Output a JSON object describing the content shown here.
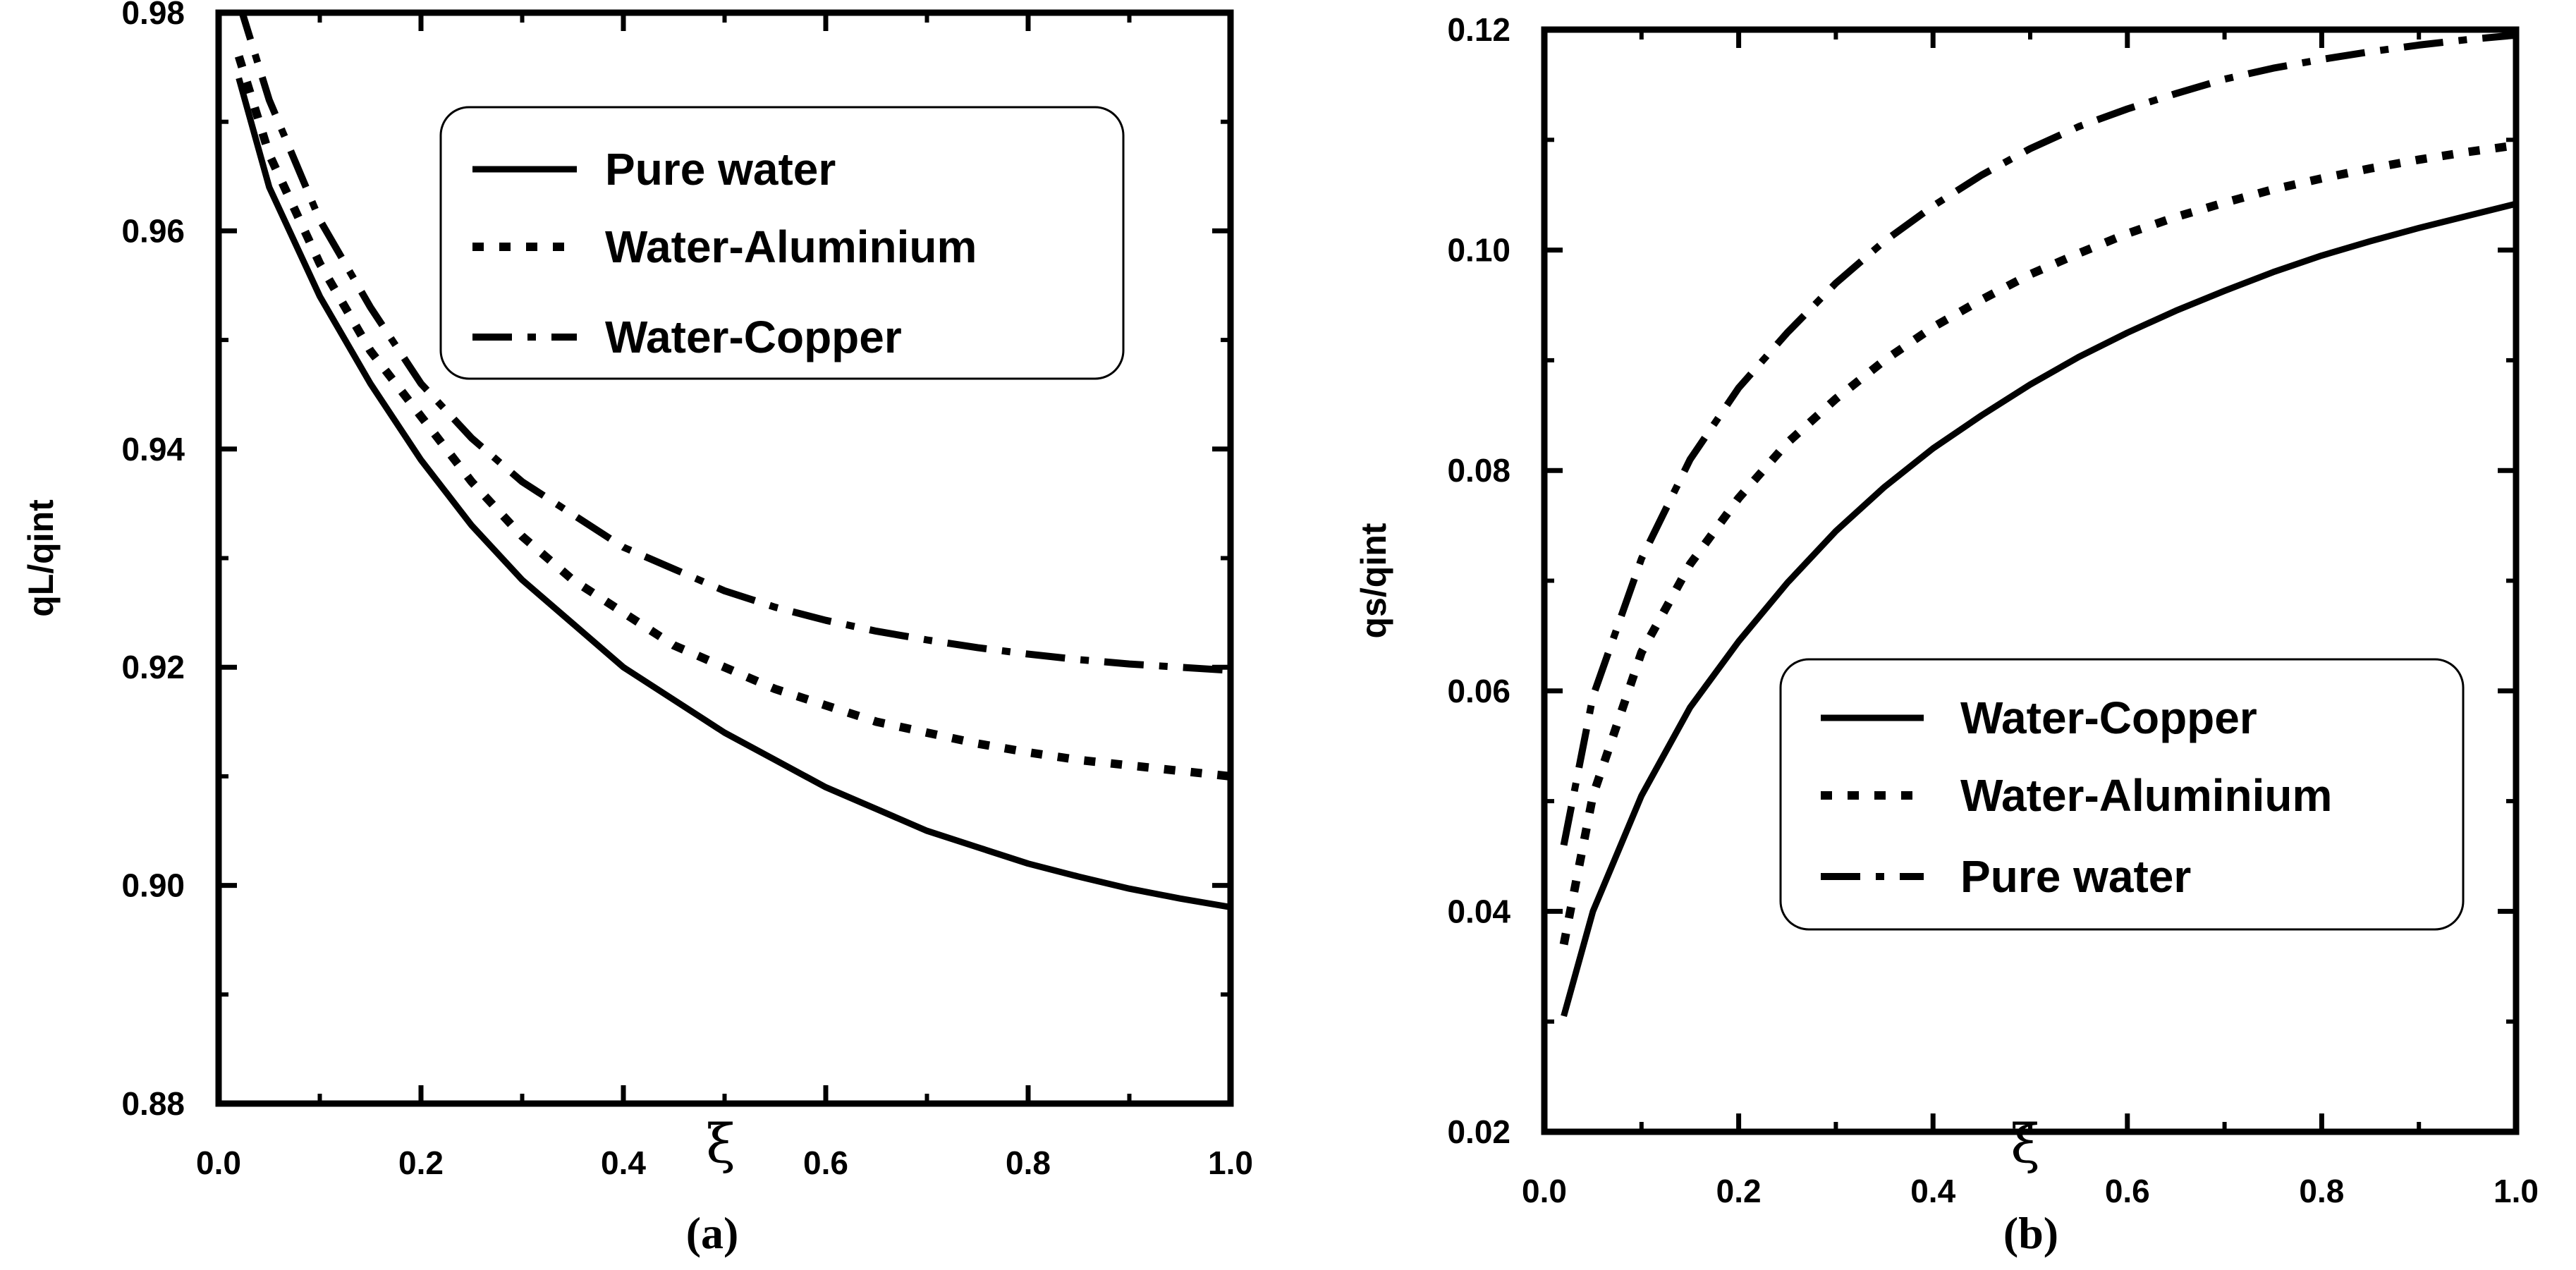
{
  "chart_data": [
    {
      "type": "line",
      "panel_label": "(a)",
      "title": "",
      "xlabel": "ξ",
      "ylabel": "qL/qint",
      "xlim": [
        0.0,
        1.0
      ],
      "ylim": [
        0.88,
        0.98
      ],
      "x_ticks": [
        "0.0",
        "0.2",
        "0.4",
        "0.6",
        "0.8",
        "1.0"
      ],
      "y_ticks": [
        "0.88",
        "0.90",
        "0.92",
        "0.94",
        "0.96",
        "0.98"
      ],
      "grid": false,
      "legend_position": "top-right",
      "series": [
        {
          "name": "Pure water",
          "style": "solid",
          "x": [
            0.02,
            0.05,
            0.1,
            0.15,
            0.2,
            0.25,
            0.3,
            0.35,
            0.4,
            0.45,
            0.5,
            0.55,
            0.6,
            0.65,
            0.7,
            0.75,
            0.8,
            0.85,
            0.9,
            0.95,
            1.0
          ],
          "y": [
            0.974,
            0.964,
            0.954,
            0.946,
            0.939,
            0.933,
            0.928,
            0.924,
            0.92,
            0.917,
            0.914,
            0.9115,
            0.909,
            0.907,
            0.905,
            0.9035,
            0.902,
            0.9008,
            0.8997,
            0.8988,
            0.898
          ]
        },
        {
          "name": "Water-Aluminium",
          "style": "dotted",
          "x": [
            0.02,
            0.05,
            0.1,
            0.15,
            0.2,
            0.25,
            0.3,
            0.35,
            0.4,
            0.45,
            0.5,
            0.55,
            0.6,
            0.65,
            0.7,
            0.75,
            0.8,
            0.85,
            0.9,
            0.95,
            1.0
          ],
          "y": [
            0.976,
            0.967,
            0.957,
            0.949,
            0.943,
            0.937,
            0.932,
            0.928,
            0.925,
            0.922,
            0.92,
            0.918,
            0.9165,
            0.915,
            0.914,
            0.913,
            0.9122,
            0.9115,
            0.911,
            0.9105,
            0.91
          ]
        },
        {
          "name": "Water-Copper",
          "style": "dashdot",
          "x": [
            0.02,
            0.05,
            0.1,
            0.15,
            0.2,
            0.25,
            0.3,
            0.35,
            0.4,
            0.45,
            0.5,
            0.55,
            0.6,
            0.65,
            0.7,
            0.75,
            0.8,
            0.85,
            0.9,
            0.95,
            1.0
          ],
          "y": [
            0.981,
            0.972,
            0.961,
            0.953,
            0.946,
            0.941,
            0.937,
            0.934,
            0.931,
            0.929,
            0.927,
            0.9255,
            0.9243,
            0.9233,
            0.9225,
            0.9218,
            0.9212,
            0.9207,
            0.9203,
            0.92,
            0.9197
          ]
        }
      ]
    },
    {
      "type": "line",
      "panel_label": "(b)",
      "title": "",
      "xlabel": "ξ",
      "ylabel": "qs/qint",
      "xlim": [
        0.0,
        1.0
      ],
      "ylim": [
        0.02,
        0.12
      ],
      "x_ticks": [
        "0.0",
        "0.2",
        "0.4",
        "0.6",
        "0.8",
        "1.0"
      ],
      "y_ticks": [
        "0.02",
        "0.04",
        "0.06",
        "0.08",
        "0.10",
        "0.12"
      ],
      "grid": false,
      "legend_position": "bottom-right",
      "series": [
        {
          "name": "Water-Copper",
          "style": "solid",
          "x": [
            0.02,
            0.05,
            0.1,
            0.15,
            0.2,
            0.25,
            0.3,
            0.35,
            0.4,
            0.45,
            0.5,
            0.55,
            0.6,
            0.65,
            0.7,
            0.75,
            0.8,
            0.85,
            0.9,
            0.95,
            1.0
          ],
          "y": [
            0.0305,
            0.04,
            0.0505,
            0.0585,
            0.0645,
            0.0698,
            0.0745,
            0.0785,
            0.082,
            0.085,
            0.0878,
            0.0903,
            0.0925,
            0.0945,
            0.0963,
            0.098,
            0.0995,
            0.1008,
            0.102,
            0.1031,
            0.1042
          ]
        },
        {
          "name": "Water-Aluminium",
          "style": "dotted",
          "x": [
            0.02,
            0.05,
            0.1,
            0.15,
            0.2,
            0.25,
            0.3,
            0.35,
            0.4,
            0.45,
            0.5,
            0.55,
            0.6,
            0.65,
            0.7,
            0.75,
            0.8,
            0.85,
            0.9,
            0.95,
            1.0
          ],
          "y": [
            0.037,
            0.0505,
            0.0635,
            0.0715,
            0.0775,
            0.0825,
            0.0865,
            0.09,
            0.093,
            0.0955,
            0.0978,
            0.0997,
            0.1015,
            0.103,
            0.1043,
            0.1055,
            0.1065,
            0.1074,
            0.1082,
            0.1089,
            0.1095
          ]
        },
        {
          "name": "Pure water",
          "style": "dashdot",
          "x": [
            0.02,
            0.05,
            0.1,
            0.15,
            0.2,
            0.25,
            0.3,
            0.35,
            0.4,
            0.45,
            0.5,
            0.55,
            0.6,
            0.65,
            0.7,
            0.75,
            0.8,
            0.85,
            0.9,
            0.95,
            1.0
          ],
          "y": [
            0.046,
            0.0595,
            0.072,
            0.081,
            0.0875,
            0.0925,
            0.097,
            0.1008,
            0.104,
            0.1068,
            0.1092,
            0.1112,
            0.1128,
            0.1142,
            0.1155,
            0.1165,
            0.1173,
            0.118,
            0.1186,
            0.1191,
            0.1195
          ]
        }
      ]
    }
  ]
}
